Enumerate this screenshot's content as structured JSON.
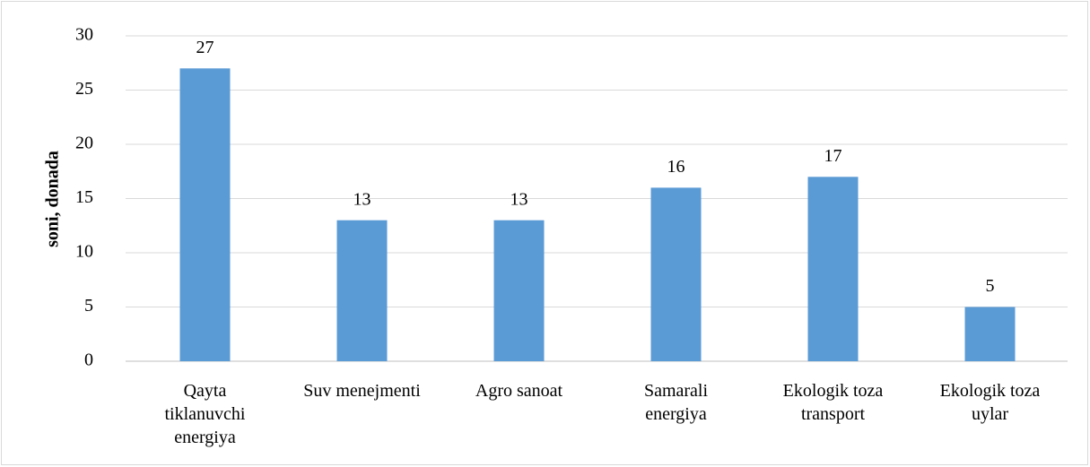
{
  "chart_data": {
    "type": "bar",
    "y_label": "soni, donada",
    "categories": [
      "Qayta tiklanuvchi energiya",
      "Suv menejmenti",
      "Agro sanoat",
      "Samarali energiya",
      "Ekologik toza transport",
      "Ekologik toza uylar"
    ],
    "values": [
      27,
      13,
      13,
      16,
      17,
      5
    ],
    "color": "#5b9bd5",
    "ylim": [
      0,
      30
    ],
    "yticks": [
      0,
      5,
      10,
      15,
      20,
      25,
      30
    ],
    "grid": true
  }
}
